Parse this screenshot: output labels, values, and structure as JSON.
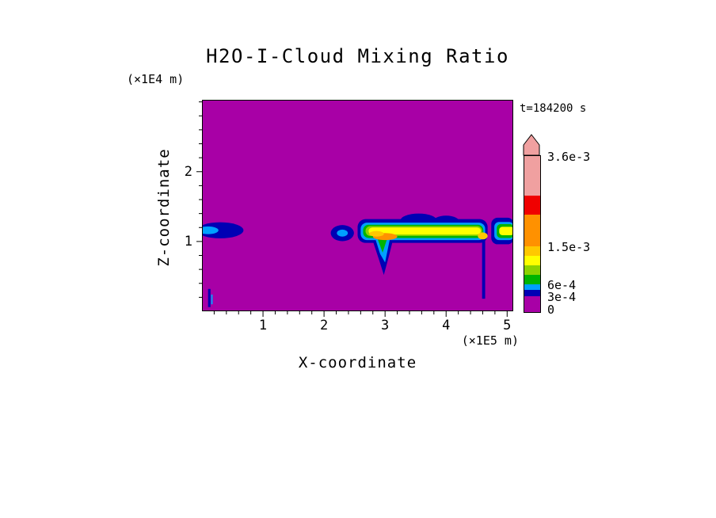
{
  "chart_data": {
    "type": "heatmap",
    "title": "H2O-I-Cloud Mixing Ratio",
    "time_label": "t=184200 s",
    "xlabel": "X-coordinate",
    "ylabel": "Z-coordinate",
    "x_unit_label": "(×1E5 m)",
    "y_unit_label": "(×1E4 m)",
    "xlim": [
      0,
      5.1
    ],
    "ylim": [
      0,
      3.03
    ],
    "x_major_ticks": [
      1,
      2,
      3,
      4,
      5
    ],
    "y_major_ticks": [
      1,
      2
    ],
    "x_minor_step": 0.2,
    "y_minor_step": 0.2,
    "background_value": 0,
    "background_color": "#a800a6",
    "levels": [
      0,
      0.0003,
      0.0006,
      0.0015,
      0.0036
    ],
    "colorbar": {
      "arrow_color": "#f0a0a0",
      "segments": [
        {
          "color": "#a800a6",
          "height": 20
        },
        {
          "color": "#0000b4",
          "height": 8
        },
        {
          "color": "#00a0ff",
          "height": 7
        },
        {
          "color": "#00b400",
          "height": 12
        },
        {
          "color": "#8cd200",
          "height": 12
        },
        {
          "color": "#ffff00",
          "height": 12
        },
        {
          "color": "#ffc800",
          "height": 12
        },
        {
          "color": "#ff9100",
          "height": 40
        },
        {
          "color": "#f00000",
          "height": 24
        },
        {
          "color": "#f0a0a0",
          "height": 50
        }
      ],
      "ticks": [
        {
          "label": "0",
          "offset": 4
        },
        {
          "label": "3e-4",
          "offset": 20
        },
        {
          "label": "6e-4",
          "offset": 35
        },
        {
          "label": "1.5e-3",
          "offset": 83
        },
        {
          "label": "3.6e-3",
          "offset": 197
        }
      ]
    },
    "features": [
      {
        "name": "left-cloud-outer",
        "shape": "ellipse",
        "color": "#0000b4",
        "cx": 0.3,
        "cz": 1.16,
        "rx": 0.38,
        "rz": 0.115
      },
      {
        "name": "left-cloud-core",
        "shape": "ellipse",
        "color": "#00a0ff",
        "cx": 0.1,
        "cz": 1.16,
        "rx": 0.17,
        "rz": 0.055
      },
      {
        "name": "ground-speck-1",
        "shape": "rect",
        "color": "#0000b4",
        "x": 0.1,
        "z": 0.06,
        "w": 0.04,
        "h": 0.26
      },
      {
        "name": "ground-speck-2",
        "shape": "rect",
        "color": "#00a0ff",
        "x": 0.15,
        "z": 0.1,
        "w": 0.025,
        "h": 0.14
      },
      {
        "name": "small-cloud-outer",
        "shape": "ellipse",
        "color": "#0000b4",
        "cx": 2.3,
        "cz": 1.12,
        "rx": 0.19,
        "rz": 0.115
      },
      {
        "name": "small-cloud-core",
        "shape": "ellipse",
        "color": "#00a0ff",
        "cx": 2.3,
        "cz": 1.12,
        "rx": 0.09,
        "rz": 0.05
      },
      {
        "name": "band-top-bump-1",
        "shape": "ellipse",
        "color": "#0000b4",
        "cx": 3.55,
        "cz": 1.3,
        "rx": 0.3,
        "rz": 0.1
      },
      {
        "name": "band-top-bump-2",
        "shape": "ellipse",
        "color": "#0000b4",
        "cx": 4.0,
        "cz": 1.28,
        "rx": 0.22,
        "rz": 0.09
      },
      {
        "name": "main-band-outer",
        "shape": "rect",
        "color": "#0000b4",
        "x": 2.55,
        "z": 0.98,
        "w": 2.13,
        "h": 0.34,
        "round": 10
      },
      {
        "name": "fall-lobe-outer",
        "shape": "polygon",
        "color": "#0000b4",
        "points": [
          [
            2.78,
            1.06
          ],
          [
            3.14,
            1.06
          ],
          [
            3.06,
            0.78
          ],
          [
            2.98,
            0.52
          ],
          [
            2.9,
            0.74
          ]
        ]
      },
      {
        "name": "main-band-cyan",
        "shape": "rect",
        "color": "#00a0ff",
        "x": 2.6,
        "z": 1.02,
        "w": 2.04,
        "h": 0.25,
        "round": 8
      },
      {
        "name": "fall-lobe-cyan",
        "shape": "polygon",
        "color": "#00a0ff",
        "points": [
          [
            2.84,
            1.04
          ],
          [
            3.08,
            1.04
          ],
          [
            3.0,
            0.7
          ],
          [
            2.92,
            0.82
          ]
        ]
      },
      {
        "name": "main-band-green",
        "shape": "rect",
        "color": "#00b400",
        "x": 2.64,
        "z": 1.05,
        "w": 1.97,
        "h": 0.19,
        "round": 7
      },
      {
        "name": "fall-lobe-green",
        "shape": "polygon",
        "color": "#00b400",
        "points": [
          [
            2.88,
            1.03
          ],
          [
            3.03,
            1.03
          ],
          [
            2.96,
            0.84
          ]
        ]
      },
      {
        "name": "main-band-chartreuse",
        "shape": "rect",
        "color": "#8cd200",
        "x": 2.68,
        "z": 1.08,
        "w": 1.91,
        "h": 0.14,
        "round": 6
      },
      {
        "name": "main-band-yellow",
        "shape": "rect",
        "color": "#ffff00",
        "x": 2.73,
        "z": 1.1,
        "w": 1.84,
        "h": 0.1,
        "round": 5
      },
      {
        "name": "orange-core-1",
        "shape": "ellipse",
        "color": "#ff9100",
        "cx": 3.0,
        "cz": 1.07,
        "rx": 0.2,
        "rz": 0.05
      },
      {
        "name": "gold-core-1",
        "shape": "ellipse",
        "color": "#ffc800",
        "cx": 2.86,
        "cz": 1.11,
        "rx": 0.12,
        "rz": 0.04
      },
      {
        "name": "fall-streak-line",
        "shape": "rect",
        "color": "#0000b4",
        "x": 4.59,
        "z": 0.18,
        "w": 0.05,
        "h": 0.88
      },
      {
        "name": "gold-core-2",
        "shape": "ellipse",
        "color": "#ffc800",
        "cx": 4.6,
        "cz": 1.08,
        "rx": 0.08,
        "rz": 0.05
      },
      {
        "name": "right-band-outer",
        "shape": "rect",
        "color": "#0000b4",
        "x": 4.74,
        "z": 0.96,
        "w": 0.37,
        "h": 0.38,
        "round": 8
      },
      {
        "name": "right-band-cyan",
        "shape": "rect",
        "color": "#00a0ff",
        "x": 4.79,
        "z": 1.02,
        "w": 0.32,
        "h": 0.26,
        "round": 6
      },
      {
        "name": "right-band-green",
        "shape": "rect",
        "color": "#00b400",
        "x": 4.83,
        "z": 1.05,
        "w": 0.28,
        "h": 0.2,
        "round": 5
      },
      {
        "name": "right-band-yellow",
        "shape": "rect",
        "color": "#ffff00",
        "x": 4.87,
        "z": 1.09,
        "w": 0.24,
        "h": 0.12,
        "round": 4
      }
    ]
  }
}
